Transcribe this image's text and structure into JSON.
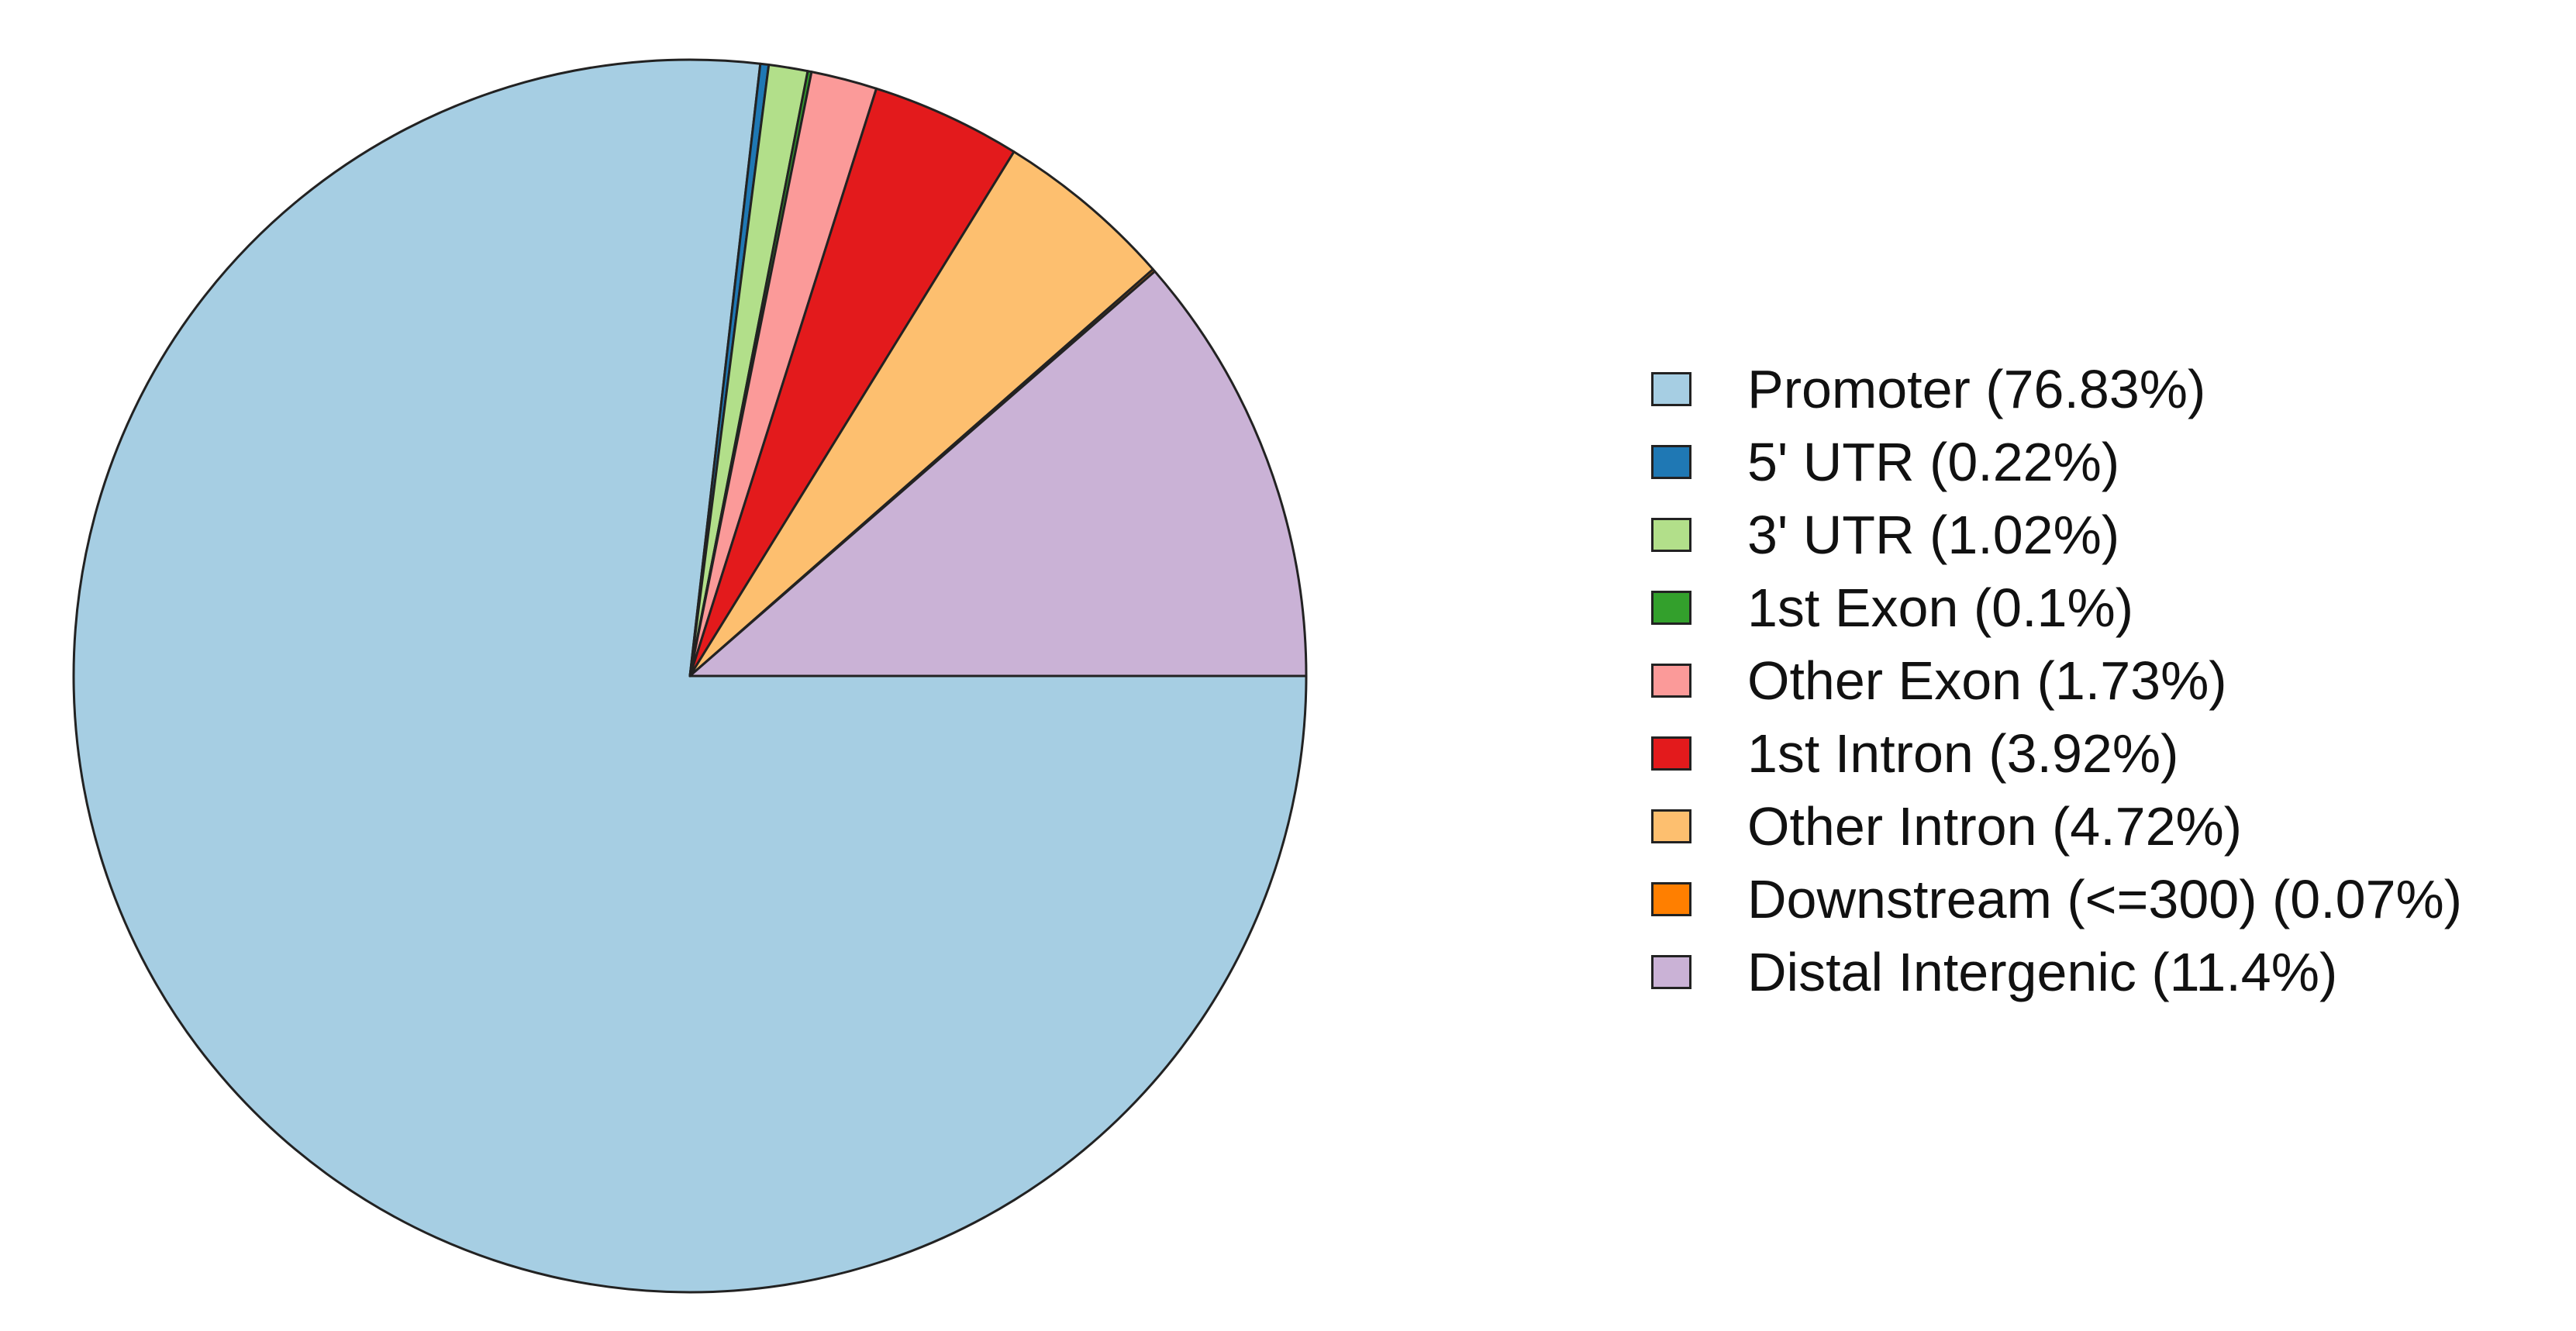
{
  "chart_data": {
    "type": "pie",
    "title": "",
    "legend_position": "right",
    "start_angle": "3 o'clock",
    "direction": "clockwise",
    "slices": [
      {
        "label": "Promoter (76.83%)",
        "value": 76.83,
        "color": "#A6CEE3"
      },
      {
        "label": "5' UTR (0.22%)",
        "value": 0.22,
        "color": "#1F78B4"
      },
      {
        "label": "3' UTR (1.02%)",
        "value": 1.02,
        "color": "#B2DF8A"
      },
      {
        "label": "1st Exon (0.1%)",
        "value": 0.1,
        "color": "#33A02C"
      },
      {
        "label": "Other Exon (1.73%)",
        "value": 1.73,
        "color": "#FB9A99"
      },
      {
        "label": "1st Intron (3.92%)",
        "value": 3.92,
        "color": "#E31A1C"
      },
      {
        "label": "Other Intron (4.72%)",
        "value": 4.72,
        "color": "#FDBF6F"
      },
      {
        "label": "Downstream (<=300) (0.07%)",
        "value": 0.07,
        "color": "#FF7F00"
      },
      {
        "label": "Distal Intergenic (11.4%)",
        "value": 11.4,
        "color": "#CAB2D6"
      }
    ]
  }
}
